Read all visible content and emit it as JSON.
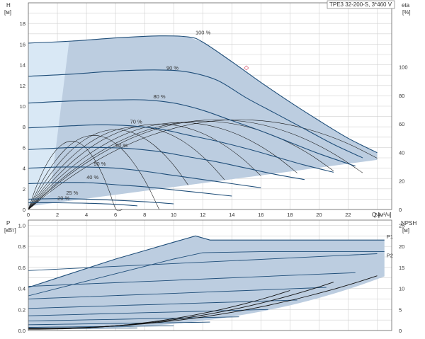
{
  "colors": {
    "curve": "#1f4e79",
    "region": "#bccde0",
    "region_light": "#d9e8f5",
    "eta": "#111111",
    "grid": "#d0d0d0",
    "axis": "#666666",
    "marker": "#d96b7e",
    "p_label": "#2f6fa3"
  },
  "chart_data": [
    {
      "type": "line",
      "panel": "head",
      "title": "TPE3 32-200-S, 3*460 V",
      "y_label_top": "H",
      "y_label_unit": "[м]",
      "x_label": "Q [м³/ч]",
      "right_label_top": "eta",
      "right_label_unit": "[%]",
      "xlim": [
        0,
        25
      ],
      "ylim": [
        0,
        20
      ],
      "right_ylim": [
        0,
        145
      ],
      "x_ticks": [
        "0",
        "2",
        "4",
        "6",
        "8",
        "10",
        "12",
        "14",
        "16",
        "18",
        "20",
        "22",
        "24"
      ],
      "y_ticks": [
        "0",
        "2",
        "4",
        "6",
        "8",
        "10",
        "12",
        "14",
        "16",
        "18"
      ],
      "right_ticks": [
        "0",
        "20",
        "40",
        "60",
        "80",
        "100"
      ],
      "grid": true,
      "series": [
        {
          "name": "100 %",
          "x": [
            0,
            3,
            6,
            9,
            11,
            12,
            14,
            16,
            18,
            20,
            22,
            24
          ],
          "y": [
            16.1,
            16.3,
            16.6,
            16.8,
            16.7,
            16.2,
            14.3,
            12.3,
            10.4,
            8.6,
            6.9,
            5.5
          ]
        },
        {
          "name": "90 %",
          "x": [
            0,
            3,
            6,
            9,
            11,
            13,
            15,
            17,
            19,
            21,
            23
          ],
          "y": [
            12.9,
            13.1,
            13.4,
            13.5,
            13.3,
            12.5,
            10.8,
            9.3,
            7.8,
            6.3,
            5.0
          ]
        },
        {
          "name": "80 %",
          "x": [
            0,
            3,
            6,
            8,
            10,
            12,
            14,
            16,
            18,
            20,
            22.5
          ],
          "y": [
            10.3,
            10.5,
            10.6,
            10.6,
            10.3,
            9.6,
            8.6,
            7.6,
            6.5,
            5.4,
            4.2
          ]
        },
        {
          "name": "70 %",
          "x": [
            0,
            3,
            5,
            7,
            9,
            11,
            13,
            15,
            17,
            19,
            21
          ],
          "y": [
            7.9,
            8.1,
            8.2,
            8.1,
            7.8,
            7.2,
            6.6,
            5.9,
            5.1,
            4.3,
            3.6
          ]
        },
        {
          "name": "60 %",
          "x": [
            0,
            3,
            5,
            7,
            9,
            11,
            13,
            15,
            17,
            19
          ],
          "y": [
            5.8,
            6.0,
            6.0,
            5.9,
            5.6,
            5.1,
            4.6,
            4.0,
            3.4,
            2.9
          ]
        },
        {
          "name": "50 %",
          "x": [
            0,
            2,
            4,
            6,
            8,
            10,
            12,
            14,
            16
          ],
          "y": [
            4.0,
            4.1,
            4.1,
            4.0,
            3.7,
            3.3,
            2.9,
            2.5,
            2.1
          ]
        },
        {
          "name": "40 %",
          "x": [
            0,
            2,
            4,
            6,
            8,
            10,
            12,
            14
          ],
          "y": [
            2.5,
            2.6,
            2.6,
            2.4,
            2.2,
            1.9,
            1.6,
            1.3
          ]
        },
        {
          "name": "25 %",
          "x": [
            0,
            2,
            4,
            6,
            8,
            10
          ],
          "y": [
            1.0,
            1.05,
            1.0,
            0.9,
            0.75,
            0.55
          ]
        },
        {
          "name": "20 %",
          "x": [
            0,
            2,
            4,
            6,
            7.5
          ],
          "y": [
            0.65,
            0.65,
            0.6,
            0.5,
            0.35
          ]
        }
      ],
      "eta_curves": [
        {
          "peak_x": 3.0,
          "peak_eta": 48,
          "end_x": 6.5
        },
        {
          "peak_x": 4.5,
          "peak_eta": 52,
          "end_x": 9.0
        },
        {
          "peak_x": 6.0,
          "peak_eta": 56,
          "end_x": 11.0
        },
        {
          "peak_x": 7.5,
          "peak_eta": 58,
          "end_x": 13.5
        },
        {
          "peak_x": 9.0,
          "peak_eta": 60,
          "end_x": 16.0
        },
        {
          "peak_x": 10.5,
          "peak_eta": 61,
          "end_x": 18.5
        },
        {
          "peak_x": 12.0,
          "peak_eta": 62,
          "end_x": 21.0
        },
        {
          "peak_x": 13.0,
          "peak_eta": 63,
          "end_x": 23.0
        },
        {
          "peak_x": 14.5,
          "peak_eta": 63,
          "end_x": 24.0
        }
      ],
      "marker": {
        "x": 15.0,
        "y": 13.7
      }
    },
    {
      "type": "area",
      "panel": "power",
      "y_label_top": "P",
      "y_label_unit": "[кВт]",
      "right_label_top": "NPSH",
      "right_label_unit": "[м]",
      "xlim": [
        0,
        25
      ],
      "ylim": [
        0,
        1.05
      ],
      "right_ylim": [
        0,
        26.25
      ],
      "y_ticks": [
        "0.0",
        "0.2",
        "0.4",
        "0.6",
        "0.8",
        "1.0"
      ],
      "right_ticks": [
        "0",
        "5",
        "10",
        "15",
        "20",
        "25"
      ],
      "grid": true,
      "series": [
        {
          "name": "P1",
          "x": [
            0,
            2,
            4,
            6,
            8,
            10,
            11.5,
            12.5,
            16,
            20,
            24.5
          ],
          "y": [
            0.41,
            0.5,
            0.59,
            0.68,
            0.76,
            0.84,
            0.9,
            0.86,
            0.86,
            0.86,
            0.86
          ]
        },
        {
          "name": "P2",
          "x": [
            0,
            2,
            4,
            6,
            8,
            10,
            12,
            16,
            20,
            24.5
          ],
          "y": [
            0.33,
            0.4,
            0.47,
            0.54,
            0.61,
            0.68,
            0.74,
            0.75,
            0.75,
            0.75
          ]
        }
      ],
      "speed_power_curves": [
        {
          "x_end": 24.0,
          "y0": 0.57,
          "y1": 0.73
        },
        {
          "x_end": 22.5,
          "y0": 0.42,
          "y1": 0.55
        },
        {
          "x_end": 20.5,
          "y0": 0.3,
          "y1": 0.41
        },
        {
          "x_end": 18.5,
          "y0": 0.21,
          "y1": 0.29
        },
        {
          "x_end": 16.5,
          "y0": 0.14,
          "y1": 0.2
        },
        {
          "x_end": 14.5,
          "y0": 0.09,
          "y1": 0.13
        },
        {
          "x_end": 12.5,
          "y0": 0.055,
          "y1": 0.08
        },
        {
          "x_end": 10.0,
          "y0": 0.03,
          "y1": 0.045
        },
        {
          "x_end": 7.5,
          "y0": 0.015,
          "y1": 0.025
        }
      ],
      "npsh_curves": [
        {
          "x_start": 0,
          "x_end": 24.0,
          "npsh_start": 0.5,
          "npsh_end": 13.0
        },
        {
          "x_start": 0,
          "x_end": 21.0,
          "npsh_start": 0.4,
          "npsh_end": 11.5
        },
        {
          "x_start": 0,
          "x_end": 18.0,
          "npsh_start": 0.3,
          "npsh_end": 9.5
        }
      ]
    }
  ]
}
